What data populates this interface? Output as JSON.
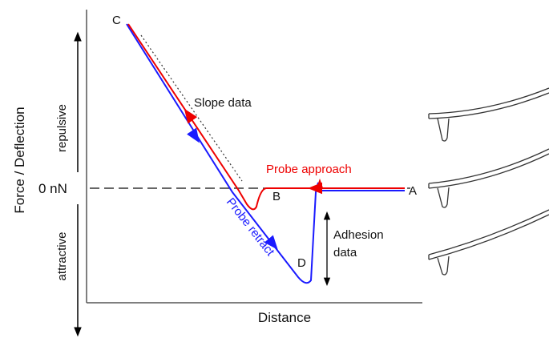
{
  "axes": {
    "y_label": "Force / Deflection",
    "x_label": "Distance",
    "zero_label": "0 nN",
    "repulsive": "repulsive",
    "attractive": "attractive"
  },
  "points": {
    "a": "A",
    "b": "B",
    "c": "C",
    "d": "D"
  },
  "annotations": {
    "slope": "Slope data",
    "approach": "Probe approach",
    "retract": "Probe retract",
    "adhesion_line1": "Adhesion",
    "adhesion_line2": "data"
  }
}
